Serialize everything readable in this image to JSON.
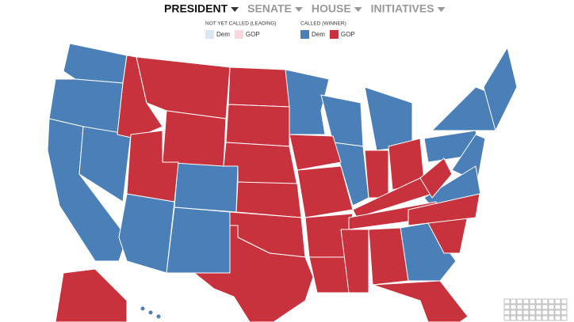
{
  "tabs": [
    "PRESIDENT",
    "SENATE",
    "HOUSE",
    "INITIATIVES"
  ],
  "legend": {
    "not_called": {
      "title": "NOT YET CALLED (LEADING)",
      "items": [
        {
          "label": "Dem",
          "color": "#dbe6f3"
        },
        {
          "label": "GOP",
          "color": "#f5d9dc"
        }
      ]
    },
    "called": {
      "title": "CALLED (WINNER)",
      "items": [
        {
          "label": "Dem",
          "color": "#4a7fb8"
        },
        {
          "label": "GOP",
          "color": "#c8323c"
        }
      ]
    }
  }
}
